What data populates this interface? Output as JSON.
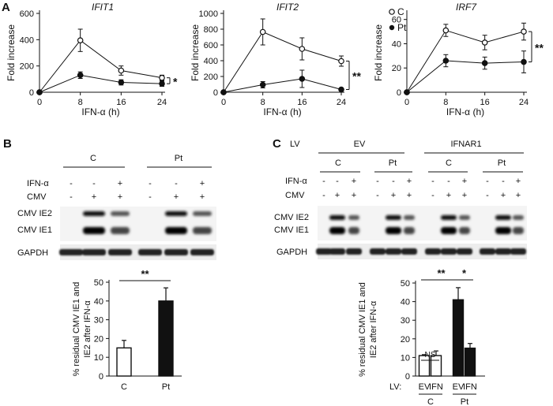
{
  "panels": {
    "a": "A",
    "b": "B",
    "c": "C"
  },
  "colors": {
    "ink": "#111111",
    "marker_fill": "#ffffff",
    "bar_dark": "#111111"
  },
  "line_charts": {
    "legend": {
      "c_label": "C",
      "pt_label": "Pt"
    },
    "xlabel": "IFN-α (h)",
    "ylabel": "Fold increase"
  },
  "chart_data": [
    {
      "type": "line",
      "title": "IFIT1",
      "xlabel": "IFN-α (h)",
      "ylabel": "Fold increase",
      "x": [
        0,
        8,
        16,
        24
      ],
      "xticks": [
        "0",
        "8",
        "16",
        "24"
      ],
      "yticks": [
        "0",
        "200",
        "400",
        "600"
      ],
      "ylim": [
        0,
        600
      ],
      "significance": "*",
      "series": [
        {
          "name": "C",
          "marker": "open",
          "values": [
            0,
            395,
            165,
            110
          ],
          "err": [
            0,
            85,
            35,
            20
          ]
        },
        {
          "name": "Pt",
          "marker": "filled",
          "values": [
            0,
            130,
            75,
            65
          ],
          "err": [
            0,
            25,
            20,
            20
          ]
        }
      ]
    },
    {
      "type": "line",
      "title": "IFIT2",
      "xlabel": "IFN-α (h)",
      "ylabel": "Fold increase",
      "x": [
        0,
        8,
        16,
        24
      ],
      "xticks": [
        "0",
        "8",
        "16",
        "24"
      ],
      "yticks": [
        "0",
        "200",
        "400",
        "600",
        "800",
        "1000"
      ],
      "ylim": [
        0,
        1000
      ],
      "significance": "**",
      "series": [
        {
          "name": "C",
          "marker": "open",
          "values": [
            0,
            765,
            550,
            395
          ],
          "err": [
            0,
            165,
            140,
            65
          ]
        },
        {
          "name": "Pt",
          "marker": "filled",
          "values": [
            0,
            95,
            170,
            35
          ],
          "err": [
            0,
            40,
            110,
            10
          ]
        }
      ]
    },
    {
      "type": "line",
      "title": "IRF7",
      "xlabel": "IFN-α (h)",
      "ylabel": "Fold increase",
      "x": [
        0,
        8,
        16,
        24
      ],
      "xticks": [
        "0",
        "8",
        "16",
        "24"
      ],
      "yticks": [
        "0",
        "20",
        "40",
        "60"
      ],
      "ylim": [
        0,
        65
      ],
      "significance": "**",
      "legend": "top-left",
      "series": [
        {
          "name": "C",
          "marker": "open",
          "values": [
            0,
            51,
            41,
            50
          ],
          "err": [
            0,
            5,
            6,
            7
          ]
        },
        {
          "name": "Pt",
          "marker": "filled",
          "values": [
            0,
            26,
            24,
            25
          ],
          "err": [
            0,
            5,
            5,
            9
          ]
        }
      ]
    },
    {
      "type": "bar",
      "ylabel_lines": [
        "% residual CMV IE1 and",
        "IE2 after IFN-α"
      ],
      "categories": [
        "C",
        "Pt"
      ],
      "values": [
        15,
        40
      ],
      "err": [
        4,
        7
      ],
      "fills": [
        "open",
        "filled"
      ],
      "yticks": [
        "0",
        "10",
        "20",
        "30",
        "40",
        "50"
      ],
      "ylim": [
        0,
        50
      ],
      "significance": [
        {
          "from": 0,
          "to": 1,
          "label": "**"
        }
      ]
    },
    {
      "type": "bar",
      "ylabel_lines": [
        "% residual CMV IE1 and",
        "IE2 after IFN-α"
      ],
      "categories": [
        "EV",
        "IFN",
        "EV",
        "IFN"
      ],
      "groups": [
        "C",
        "Pt"
      ],
      "lv_label": "LV:",
      "values": [
        11,
        11,
        41,
        15
      ],
      "err": [
        0.5,
        2.5,
        6.5,
        2.5
      ],
      "fills": [
        "open",
        "open",
        "filled",
        "filled"
      ],
      "yticks": [
        "0",
        "10",
        "20",
        "30",
        "40",
        "50"
      ],
      "ylim": [
        0,
        50
      ],
      "significance": [
        {
          "from": 0,
          "to": 1,
          "label": "NS"
        },
        {
          "from": 0,
          "to": 2,
          "label": "**"
        },
        {
          "from": 2,
          "to": 3,
          "label": "*"
        }
      ]
    }
  ],
  "blot_b": {
    "group_labels": [
      "C",
      "Pt"
    ],
    "ifn_label": "IFN-α",
    "ifn_row": [
      "-",
      "-",
      "+",
      "-",
      "-",
      "+"
    ],
    "cmv_label": "CMV",
    "cmv_row": [
      "-",
      "+",
      "+",
      "-",
      "+",
      "+"
    ],
    "band_labels": [
      "CMV IE2",
      "CMV IE1"
    ],
    "gapdh_label": "GAPDH"
  },
  "blot_c": {
    "lv_label": "LV",
    "lv_groups": [
      "EV",
      "IFNAR1"
    ],
    "group_labels": [
      "C",
      "Pt",
      "C",
      "Pt"
    ],
    "ifn_label": "IFN-α",
    "ifn_row": [
      "-",
      "-",
      "+",
      "-",
      "-",
      "+",
      "-",
      "-",
      "+",
      "-",
      "-",
      "+"
    ],
    "cmv_label": "CMV",
    "cmv_row": [
      "-",
      "+",
      "+",
      "-",
      "+",
      "+",
      "-",
      "+",
      "+",
      "-",
      "+",
      "+"
    ],
    "band_labels": [
      "CMV IE2",
      "CMV IE1"
    ],
    "gapdh_label": "GAPDH"
  }
}
